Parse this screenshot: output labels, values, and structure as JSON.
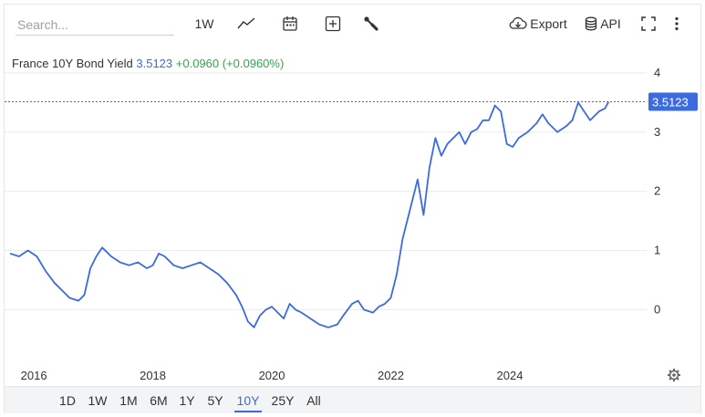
{
  "toolbar": {
    "search_placeholder": "Search...",
    "interval_label": "1W",
    "export_label": "Export",
    "api_label": "API"
  },
  "legend": {
    "name": "France 10Y Bond Yield",
    "value": "3.5123",
    "change": "+0.0960 (+0.0960%)"
  },
  "ranges": [
    {
      "label": "1D",
      "active": false
    },
    {
      "label": "1W",
      "active": false
    },
    {
      "label": "1M",
      "active": false
    },
    {
      "label": "6M",
      "active": false
    },
    {
      "label": "1Y",
      "active": false
    },
    {
      "label": "5Y",
      "active": false
    },
    {
      "label": "10Y",
      "active": true
    },
    {
      "label": "25Y",
      "active": false
    },
    {
      "label": "All",
      "active": false
    }
  ],
  "colors": {
    "line": "#3b6bde",
    "badge": "#3b6bde",
    "grid": "#ebebeb",
    "change_positive": "#2fa84f"
  },
  "chart_data": {
    "type": "line",
    "series": [
      {
        "name": "France 10Y Bond Yield",
        "points": [
          [
            2015.6,
            0.95
          ],
          [
            2015.75,
            0.9
          ],
          [
            2015.9,
            1.0
          ],
          [
            2016.05,
            0.9
          ],
          [
            2016.2,
            0.65
          ],
          [
            2016.35,
            0.45
          ],
          [
            2016.5,
            0.3
          ],
          [
            2016.6,
            0.2
          ],
          [
            2016.75,
            0.15
          ],
          [
            2016.85,
            0.25
          ],
          [
            2016.95,
            0.7
          ],
          [
            2017.05,
            0.9
          ],
          [
            2017.15,
            1.05
          ],
          [
            2017.3,
            0.9
          ],
          [
            2017.45,
            0.8
          ],
          [
            2017.6,
            0.75
          ],
          [
            2017.75,
            0.8
          ],
          [
            2017.9,
            0.7
          ],
          [
            2018.0,
            0.75
          ],
          [
            2018.1,
            0.95
          ],
          [
            2018.2,
            0.9
          ],
          [
            2018.35,
            0.75
          ],
          [
            2018.5,
            0.7
          ],
          [
            2018.65,
            0.75
          ],
          [
            2018.8,
            0.8
          ],
          [
            2018.95,
            0.7
          ],
          [
            2019.1,
            0.6
          ],
          [
            2019.25,
            0.45
          ],
          [
            2019.4,
            0.25
          ],
          [
            2019.5,
            0.05
          ],
          [
            2019.6,
            -0.2
          ],
          [
            2019.7,
            -0.3
          ],
          [
            2019.8,
            -0.1
          ],
          [
            2019.9,
            0.0
          ],
          [
            2020.0,
            0.05
          ],
          [
            2020.1,
            -0.05
          ],
          [
            2020.2,
            -0.15
          ],
          [
            2020.3,
            0.1
          ],
          [
            2020.4,
            0.0
          ],
          [
            2020.5,
            -0.05
          ],
          [
            2020.65,
            -0.15
          ],
          [
            2020.8,
            -0.25
          ],
          [
            2020.95,
            -0.3
          ],
          [
            2021.1,
            -0.25
          ],
          [
            2021.2,
            -0.1
          ],
          [
            2021.35,
            0.1
          ],
          [
            2021.45,
            0.15
          ],
          [
            2021.55,
            0.0
          ],
          [
            2021.7,
            -0.05
          ],
          [
            2021.8,
            0.05
          ],
          [
            2021.9,
            0.1
          ],
          [
            2022.0,
            0.2
          ],
          [
            2022.1,
            0.6
          ],
          [
            2022.2,
            1.2
          ],
          [
            2022.3,
            1.6
          ],
          [
            2022.45,
            2.2
          ],
          [
            2022.55,
            1.6
          ],
          [
            2022.65,
            2.4
          ],
          [
            2022.75,
            2.9
          ],
          [
            2022.85,
            2.6
          ],
          [
            2022.95,
            2.8
          ],
          [
            2023.05,
            2.9
          ],
          [
            2023.15,
            3.0
          ],
          [
            2023.25,
            2.8
          ],
          [
            2023.35,
            3.0
          ],
          [
            2023.45,
            3.05
          ],
          [
            2023.55,
            3.2
          ],
          [
            2023.65,
            3.2
          ],
          [
            2023.75,
            3.45
          ],
          [
            2023.85,
            3.35
          ],
          [
            2023.95,
            2.8
          ],
          [
            2024.05,
            2.75
          ],
          [
            2024.15,
            2.9
          ],
          [
            2024.3,
            3.0
          ],
          [
            2024.45,
            3.15
          ],
          [
            2024.55,
            3.3
          ],
          [
            2024.65,
            3.15
          ],
          [
            2024.8,
            3.0
          ],
          [
            2024.95,
            3.1
          ],
          [
            2025.05,
            3.2
          ],
          [
            2025.15,
            3.5
          ],
          [
            2025.25,
            3.35
          ],
          [
            2025.35,
            3.2
          ],
          [
            2025.5,
            3.35
          ],
          [
            2025.6,
            3.4
          ],
          [
            2025.66,
            3.5123
          ]
        ]
      }
    ],
    "x_ticks": [
      "2016",
      "2018",
      "2020",
      "2022",
      "2024"
    ],
    "y_ticks": [
      "0",
      "1",
      "2",
      "3",
      "4"
    ],
    "xlim": [
      2015.6,
      2026.3
    ],
    "ylim": [
      -0.95,
      4.6
    ],
    "last_value_label": "3.5123",
    "grid": true
  }
}
